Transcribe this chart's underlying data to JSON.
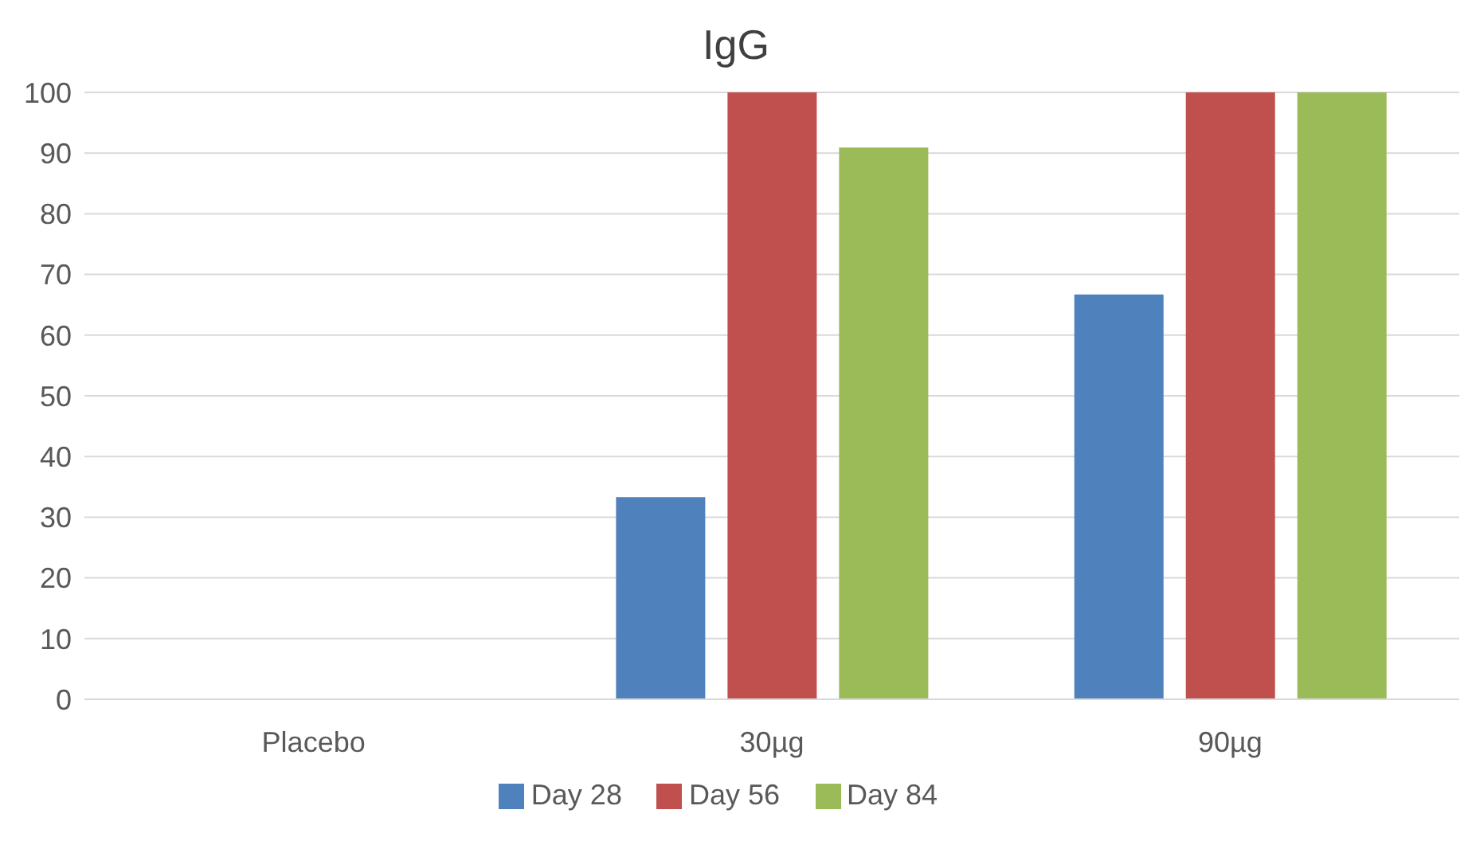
{
  "chart_data": {
    "type": "bar",
    "title": "IgG",
    "categories": [
      "Placebo",
      "30µg",
      "90µg"
    ],
    "series": [
      {
        "name": "Day 28",
        "color": "#4f81bd",
        "values": [
          0,
          33.3,
          66.7
        ]
      },
      {
        "name": "Day 56",
        "color": "#c0504d",
        "values": [
          0,
          100,
          100
        ]
      },
      {
        "name": "Day 84",
        "color": "#9bbb59",
        "values": [
          0,
          90.9,
          100
        ]
      }
    ],
    "ylim": [
      0,
      100
    ],
    "yticks": [
      0,
      10,
      20,
      30,
      40,
      50,
      60,
      70,
      80,
      90,
      100
    ],
    "grid": "y",
    "legend": "bottom"
  }
}
